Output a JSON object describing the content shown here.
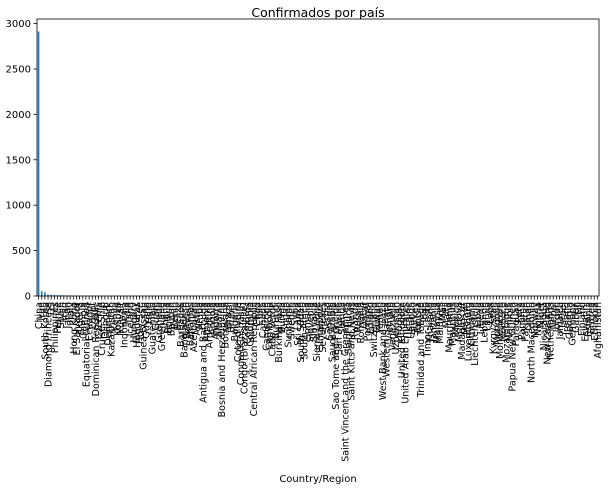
{
  "chart_data": {
    "type": "bar",
    "title": "Confirmados por país",
    "xlabel": "Country/Region",
    "ylabel": "",
    "ylim": [
      0,
      3050
    ],
    "yticks": [
      0,
      500,
      1000,
      1500,
      2000,
      2500,
      3000
    ],
    "grid": false,
    "legend": "none",
    "bar_color": "#1f77b4",
    "categories": [
      "China",
      "Iran",
      "South Korea",
      "Diamond Princess",
      "US",
      "Philippines",
      "France",
      "Spain",
      "Iraq",
      "Japan",
      "Italy",
      "Hong Kong",
      "El Salvador",
      "Algeria",
      "Gambia",
      "Equatorial Guinea",
      "Ecuador",
      "Egypt",
      "Dominican Republic",
      "Czechia",
      "Cruise Ship",
      "Djibouti",
      "Denmark",
      "Kazakhstan",
      "Kenya",
      "Kosovo",
      "Kuwait",
      "Indonesia",
      "India",
      "Iceland",
      "Hungary",
      "Honduras",
      "Holy See",
      "Guinea-Bissau",
      "Guyana",
      "Haiti",
      "Guatemala",
      "Guam",
      "Grenada",
      "Greenland",
      "Ghana",
      "Bolivia",
      "Bhutan",
      "Benin",
      "Belize",
      "Barbados",
      "Bangladesh",
      "Bahrain",
      "Bahamas",
      "Azerbaijan",
      "Austria",
      "Aruba",
      "Antigua and Barbuda",
      "Armenia",
      "Argentina",
      "Angola",
      "Andorra",
      "Albania",
      "Bosnia and Herzegovina",
      "Botswana",
      "Brazil",
      "Brunei",
      "Bulgaria",
      "Cote d'Ivoire",
      "Congo (Kinshasa)",
      "Congo (Brazzaville)",
      "Comoros",
      "Colombia",
      "Central African Republic",
      "Chad",
      "Chile",
      "Canada",
      "Cameroon",
      "Cambodia",
      "Cabo Verde",
      "Burundi",
      "Burkina Faso",
      "Burma",
      "Sudan",
      "Suriname",
      "Sweden",
      "Syria",
      "Sri Lanka",
      "South Sudan",
      "South Africa",
      "Somalia",
      "Slovenia",
      "Slovakia",
      "Sierra Leone",
      "Singapore",
      "Seychelles",
      "Serbia",
      "Senegal",
      "Saudi Arabia",
      "Sao Tome and Principe",
      "San Marino",
      "Samoa",
      "Saint Vincent and the Grenadines",
      "Saint Lucia",
      "Saint Kitts and Nevis",
      "Rwanda",
      "Russia",
      "Romania",
      "Qatar",
      "Portugal",
      "Poland",
      "Switzerland",
      "Taiwan",
      "Yemen",
      "West Bank and Gaza",
      "Western Sahara",
      "Vietnam",
      "Venezuela",
      "Uzbekistan",
      "Uruguay",
      "United Kingdom",
      "United Arab Emirates",
      "Ukraine",
      "Uganda",
      "Turkey",
      "Tunisia",
      "Trinidad and Tobago",
      "Togo",
      "Timor-Leste",
      "Thailand",
      "Tanzania",
      "Malaysia",
      "Maldives",
      "Mali",
      "Malta",
      "Mauritania",
      "Mauritius",
      "Mexico",
      "Moldova",
      "Madagascar",
      "Malawi",
      "Luxembourg",
      "Lithuania",
      "Liechtenstein",
      "Libya",
      "Liberia",
      "Lebanon",
      "Latvia",
      "Laos",
      "Kyrgyzstan",
      "Mongolia",
      "Montenegro",
      "Morocco",
      "Mozambique",
      "Namibia",
      "Papua New Guinea",
      "Paraguay",
      "Peru",
      "Panama",
      "Pakistan",
      "Oman",
      "North Macedonia",
      "Norway",
      "Nigeria",
      "Niger",
      "Nicaragua",
      "New Zealand",
      "Netherlands",
      "Nepal",
      "Jordan",
      "Jamaica",
      "Israel",
      "Ireland",
      "Georgia",
      "Germany",
      "Gabon",
      "Fiji",
      "Finland",
      "Eswatini",
      "Estonia",
      "Eritrea",
      "Ethiopia",
      "Afghanistan"
    ],
    "values": [
      2912,
      54,
      42,
      17,
      14,
      11,
      10,
      9,
      8,
      7,
      6,
      5,
      4,
      4,
      3,
      3,
      3,
      2,
      2,
      2,
      2,
      1,
      1,
      1,
      1,
      1,
      1,
      1,
      1,
      1,
      1,
      1,
      1,
      1,
      1,
      1,
      0,
      0,
      0,
      0,
      0,
      0,
      0,
      0,
      0,
      0,
      0,
      0,
      0,
      0,
      0,
      0,
      0,
      0,
      0,
      0,
      0,
      0,
      0,
      0,
      0,
      0,
      0,
      0,
      0,
      0,
      0,
      0,
      0,
      0,
      0,
      0,
      0,
      0,
      0,
      0,
      0,
      0,
      0,
      0,
      0,
      0,
      0,
      0,
      0,
      0,
      0,
      0,
      0,
      0,
      0,
      0,
      0,
      0,
      0,
      0,
      0,
      0,
      0,
      0,
      0,
      0,
      0,
      0,
      0,
      0,
      0,
      0,
      0,
      0,
      0,
      0,
      0,
      0,
      0,
      0,
      0,
      0,
      0,
      0,
      0,
      0,
      0,
      0,
      0,
      0,
      0,
      0,
      0,
      0,
      0,
      0,
      0,
      0,
      0,
      0,
      0,
      0,
      0,
      0,
      0,
      0,
      0,
      0,
      0,
      0,
      0,
      0,
      0,
      0,
      0,
      0,
      0,
      0,
      0,
      0,
      0,
      0,
      0,
      0,
      0,
      0,
      0,
      0,
      0,
      0,
      0,
      0,
      0,
      0,
      0,
      0,
      0,
      0,
      0,
      0,
      0,
      0
    ]
  }
}
